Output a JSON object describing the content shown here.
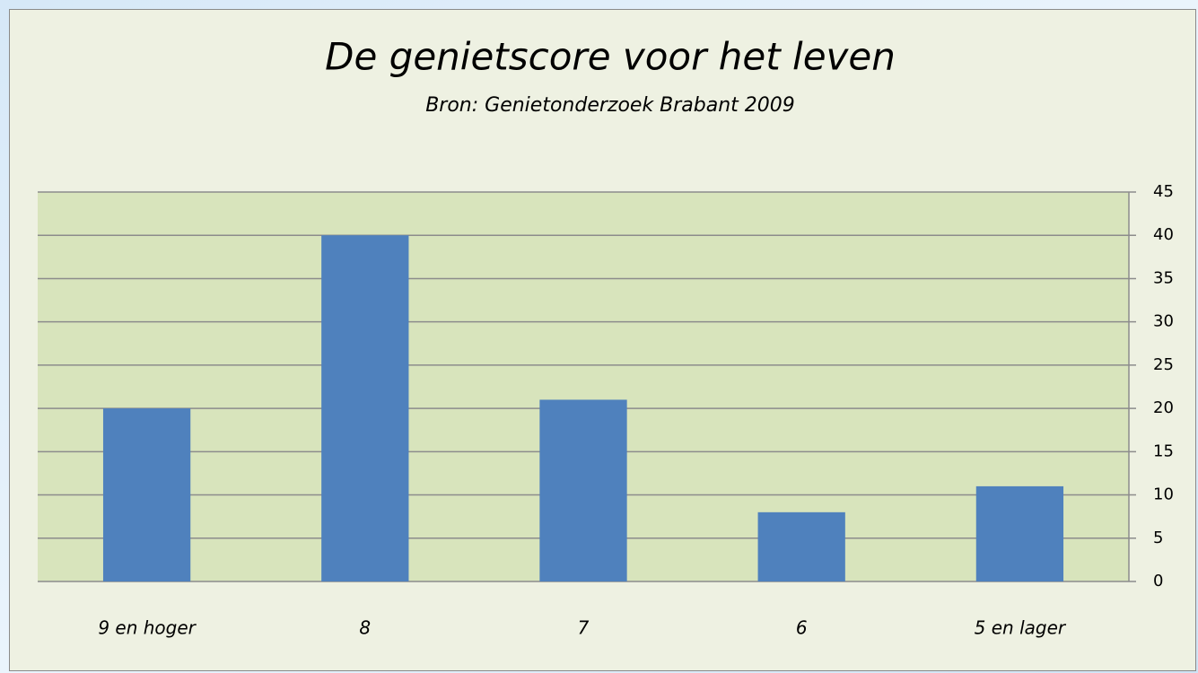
{
  "chart_data": {
    "type": "bar",
    "title": "De genietscore voor het leven",
    "subtitle": "Bron: Genietonderzoek Brabant 2009",
    "categories": [
      "9 en hoger",
      "8",
      "7",
      "6",
      "5 en lager"
    ],
    "values": [
      20,
      40,
      21,
      8,
      11
    ],
    "color": "#4f81bd",
    "ylim": [
      0,
      45
    ],
    "yticks": [
      0,
      5,
      10,
      15,
      20,
      25,
      30,
      35,
      40,
      45
    ],
    "grid": true,
    "y_axis_position": "right"
  }
}
